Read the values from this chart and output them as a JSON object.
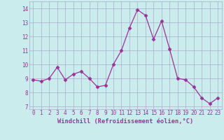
{
  "x": [
    0,
    1,
    2,
    3,
    4,
    5,
    6,
    7,
    8,
    9,
    10,
    11,
    12,
    13,
    14,
    15,
    16,
    17,
    18,
    19,
    20,
    21,
    22,
    23
  ],
  "y": [
    8.9,
    8.8,
    9.0,
    9.8,
    8.9,
    9.3,
    9.5,
    9.0,
    8.4,
    8.5,
    10.0,
    11.0,
    12.6,
    13.9,
    13.5,
    11.8,
    13.1,
    11.1,
    9.0,
    8.9,
    8.4,
    7.6,
    7.2,
    7.6
  ],
  "line_color": "#993399",
  "marker": "D",
  "marker_size": 2.5,
  "bg_color": "#cbecec",
  "grid_color": "#aaaacc",
  "xlabel": "Windchill (Refroidissement éolien,°C)",
  "xlabel_color": "#993399",
  "tick_color": "#993399",
  "ylim": [
    6.8,
    14.5
  ],
  "yticks": [
    7,
    8,
    9,
    10,
    11,
    12,
    13,
    14
  ],
  "xticks": [
    0,
    1,
    2,
    3,
    4,
    5,
    6,
    7,
    8,
    9,
    10,
    11,
    12,
    13,
    14,
    15,
    16,
    17,
    18,
    19,
    20,
    21,
    22,
    23
  ]
}
